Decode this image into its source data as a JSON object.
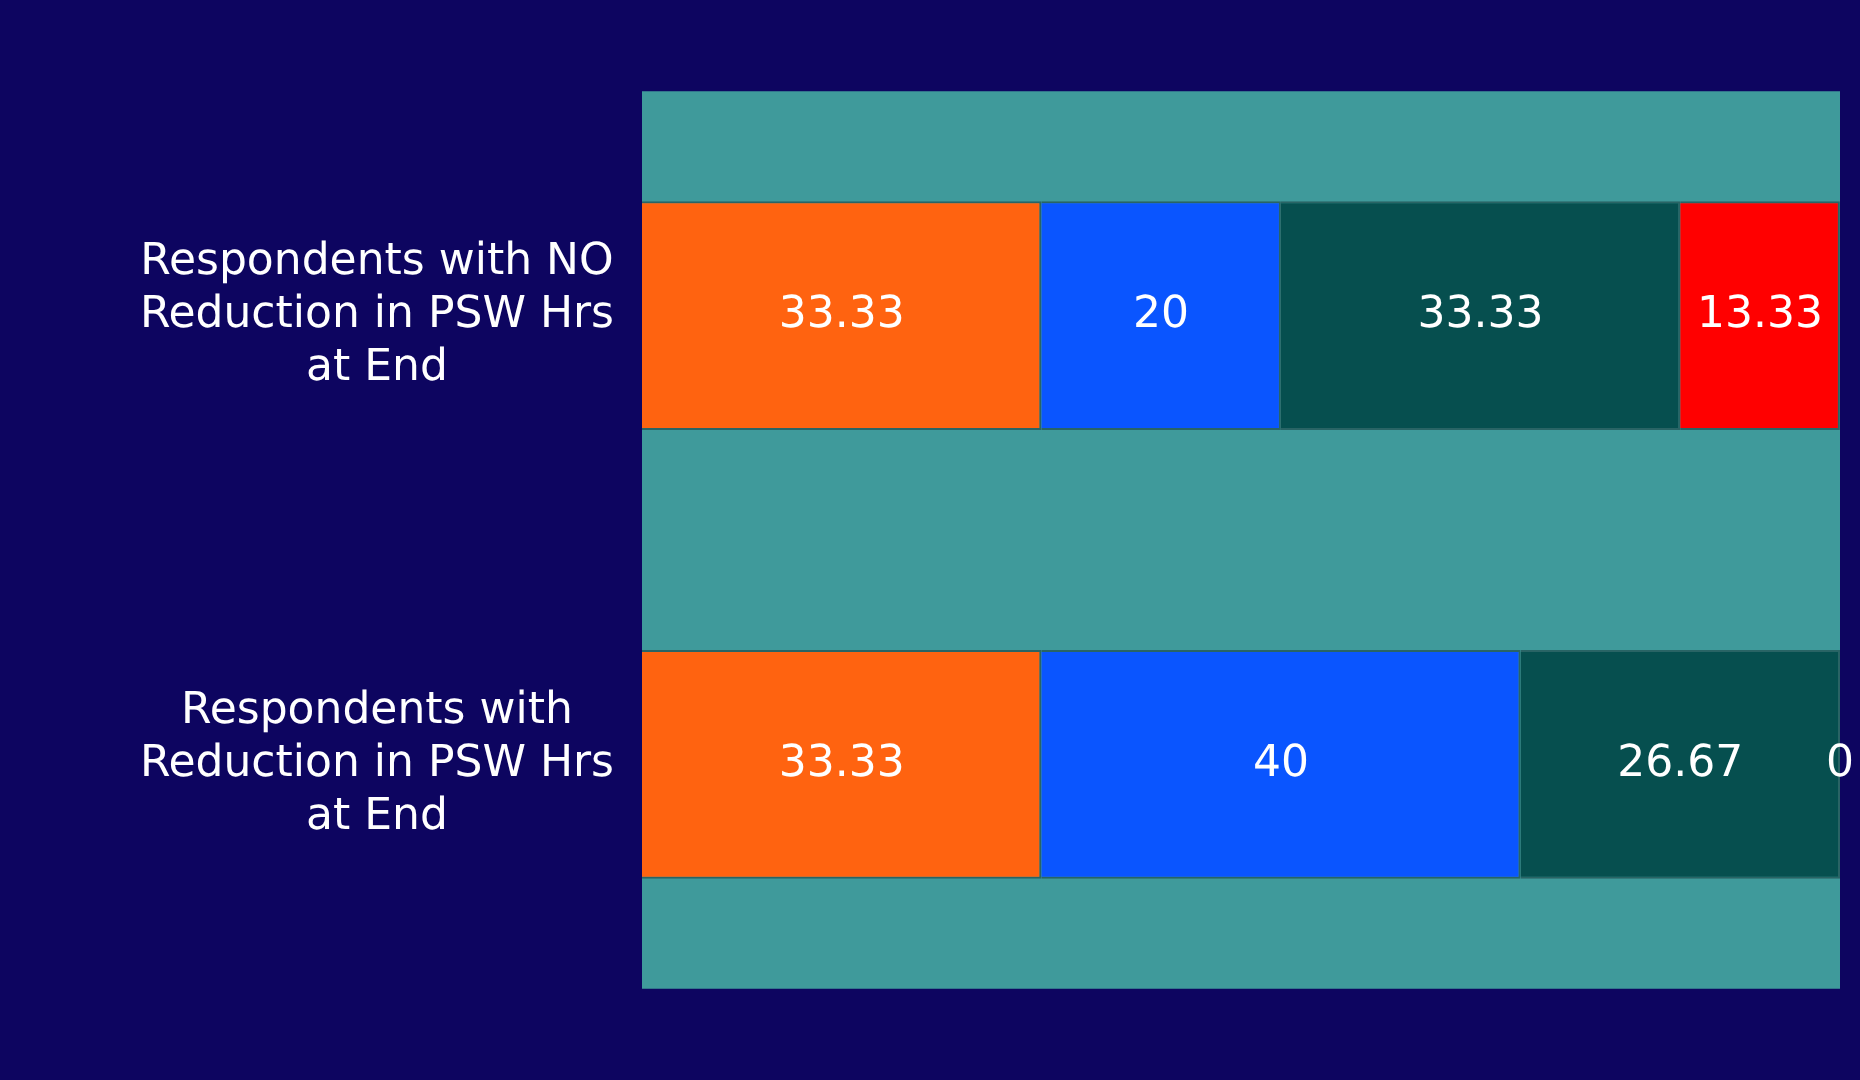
{
  "chart_data": {
    "type": "bar",
    "orientation": "horizontal",
    "stacked": true,
    "data_labels": true,
    "tick_labels": "y",
    "xlim": [
      0,
      100
    ],
    "categories": [
      "Respondents with NO Reduction in PSW Hrs at End",
      "Respondents with Reduction in PSW Hrs at End"
    ],
    "series": [
      {
        "color": "#ff6310",
        "values": [
          33.33,
          33.33
        ]
      },
      {
        "color": "#0a55ff",
        "values": [
          20,
          40
        ]
      },
      {
        "color": "#064f4f",
        "values": [
          33.33,
          26.67
        ]
      },
      {
        "color": "#ff0000",
        "values": [
          13.33,
          0
        ]
      }
    ]
  }
}
